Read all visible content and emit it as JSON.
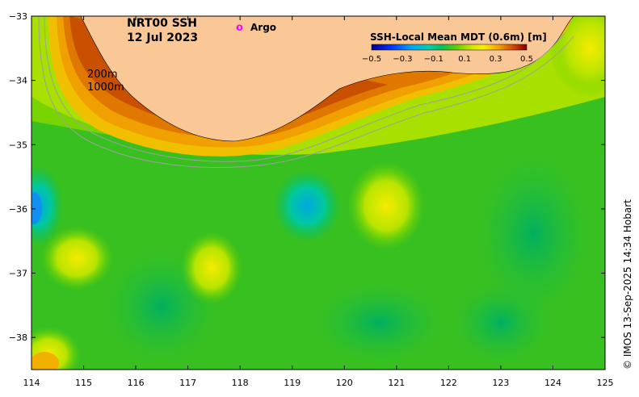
{
  "map": {
    "title": "NRT00 SSH",
    "date": "12 Jul 2023",
    "argo_marker": "o",
    "argo_label": "Argo",
    "colorbar_title": "SSH-Local Mean MDT (0.6m) [m]",
    "colorbar_ticks": [
      "−0.5",
      "−0.3",
      "−0.1",
      "0.1",
      "0.3",
      "0.5"
    ],
    "isobath_labels": [
      "200m",
      "1000m"
    ],
    "credit": "© IMOS 13-Sep-2025 14:34 Hobart",
    "lon_ticks": [
      "114",
      "115",
      "116",
      "117",
      "118",
      "119",
      "120",
      "121",
      "122",
      "123",
      "124",
      "125"
    ],
    "lat_ticks": [
      "−33",
      "−34",
      "−35",
      "−36",
      "−37",
      "−38"
    ],
    "lon_range": [
      114,
      125
    ],
    "lat_range": [
      -33,
      -38.5
    ],
    "colors": {
      "land": "#fac896",
      "argo": "#ff00ff",
      "isobath": "#a0a0a0",
      "colormap": [
        "#00008f",
        "#0030ff",
        "#00a0ff",
        "#00d0b0",
        "#00c060",
        "#40c800",
        "#a0e000",
        "#f0f000",
        "#f0b000",
        "#e07000",
        "#c03000",
        "#800000"
      ]
    }
  }
}
